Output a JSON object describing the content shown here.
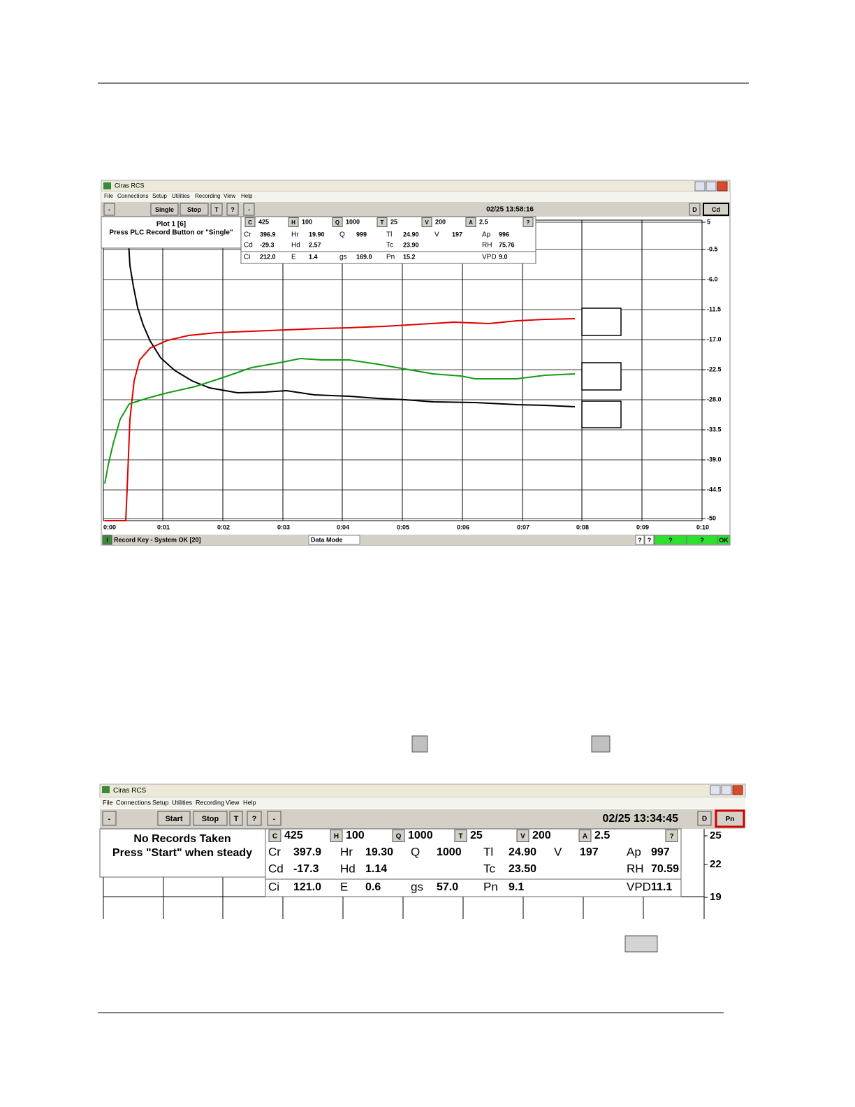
{
  "screen1": {
    "window_title": "Ciras RCS",
    "menu": [
      "File",
      "Connections",
      "Setup",
      "Utilities",
      "Recording",
      "View",
      "Help"
    ],
    "toolbar": {
      "buttons": [
        "-",
        "Single",
        "Stop",
        "T",
        "?"
      ],
      "minus": "-",
      "datetime": "02/25 13:58:16",
      "d": "D",
      "param": "Cd"
    },
    "panel": [
      "Plot 1 [6]",
      "Press PLC Record Button or \"Single\""
    ],
    "readings": {
      "setpoints": [
        [
          "C",
          "425"
        ],
        [
          "H",
          "100"
        ],
        [
          "Q",
          "1000"
        ],
        [
          "T",
          "25"
        ],
        [
          "V",
          "200"
        ],
        [
          "A",
          "2.5"
        ]
      ],
      "help": "?",
      "rows": [
        [
          [
            "Cr",
            "396.9"
          ],
          [
            "Hr",
            "19.90"
          ],
          [
            "Q",
            "999"
          ],
          [
            "Tl",
            "24.90"
          ],
          [
            "V",
            "197"
          ],
          [
            "Ap",
            "996"
          ]
        ],
        [
          [
            "Cd",
            "-29.3"
          ],
          [
            "Hd",
            "2.57"
          ],
          [
            "Tc",
            "23.90"
          ],
          [
            "RH",
            "75.76"
          ]
        ],
        [
          [
            "Ci",
            "212.0"
          ],
          [
            "E",
            "1.4"
          ],
          [
            "gs",
            "169.0"
          ],
          [
            "Pn",
            "15.2"
          ],
          [
            "VPD",
            "9.0"
          ]
        ]
      ]
    },
    "yticks": [
      "5",
      "-0.5",
      "-6.0",
      "-11.5",
      "-17.0",
      "-22.5",
      "-28.0",
      "-33.5",
      "-39.0",
      "-44.5",
      "-50"
    ],
    "xticks": [
      "0:00",
      "0:01",
      "0:02",
      "0:03",
      "0:04",
      "0:05",
      "0:06",
      "0:07",
      "0:08",
      "0:09",
      "0:10"
    ],
    "status": {
      "indicator": "I",
      "message": "Record Key - System OK [20]",
      "mode": "Data Mode",
      "flags": [
        "?",
        "?",
        "?",
        "?",
        "OK"
      ]
    }
  },
  "screen2": {
    "window_title": "Ciras RCS",
    "menu": [
      "File",
      "Connections",
      "Setup",
      "Utilities",
      "Recording",
      "View",
      "Help"
    ],
    "toolbar": {
      "buttons": [
        "-",
        "Start",
        "Stop",
        "T",
        "?"
      ],
      "minus": "-",
      "datetime": "02/25 13:34:45",
      "d": "D",
      "param": "Pn"
    },
    "panel": [
      "No Records Taken",
      "Press \"Start\" when steady"
    ],
    "readings": {
      "setpoints": [
        [
          "C",
          "425"
        ],
        [
          "H",
          "100"
        ],
        [
          "Q",
          "1000"
        ],
        [
          "T",
          "25"
        ],
        [
          "V",
          "200"
        ],
        [
          "A",
          "2.5"
        ]
      ],
      "help": "?",
      "rows": [
        [
          [
            "Cr",
            "397.9"
          ],
          [
            "Hr",
            "19.30"
          ],
          [
            "Q",
            "1000"
          ],
          [
            "Tl",
            "24.90"
          ],
          [
            "V",
            "197"
          ],
          [
            "Ap",
            "997"
          ]
        ],
        [
          [
            "Cd",
            "-17.3"
          ],
          [
            "Hd",
            "1.14"
          ],
          [
            "Tc",
            "23.50"
          ],
          [
            "RH",
            "70.59"
          ]
        ],
        [
          [
            "Ci",
            "121.0"
          ],
          [
            "E",
            "0.6"
          ],
          [
            "gs",
            "57.0"
          ],
          [
            "Pn",
            "9.1"
          ],
          [
            "VPD",
            "11.1"
          ]
        ]
      ]
    },
    "yticks": [
      "25",
      "22",
      "19"
    ]
  }
}
